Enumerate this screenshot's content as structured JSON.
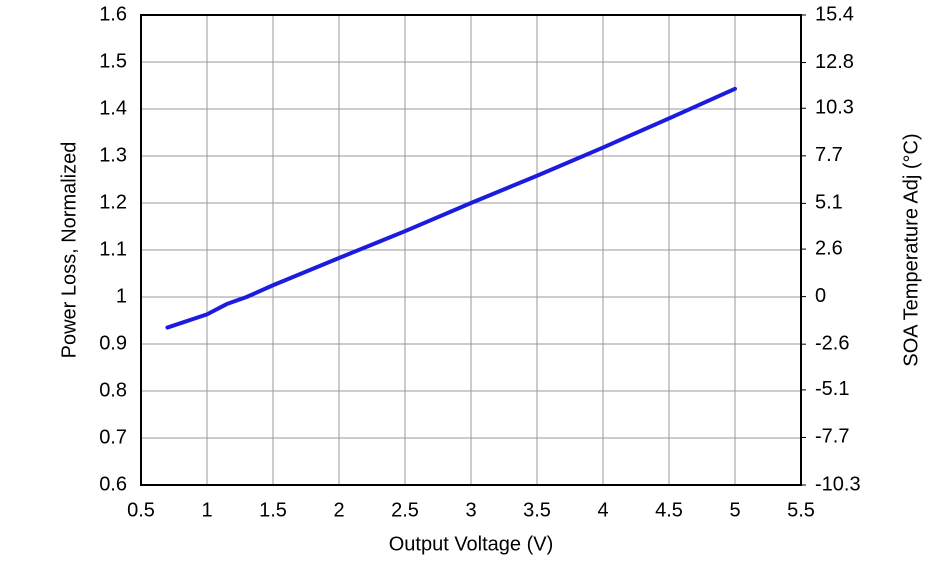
{
  "chart_data": {
    "type": "line",
    "x_label": "Output Voltage (V)",
    "y_label": "Power Loss, Normalized",
    "y2_label": "SOA Temperature Adj (°C)",
    "xlim": [
      0.5,
      5.5
    ],
    "xticks": [
      0.5,
      1,
      1.5,
      2,
      2.5,
      3,
      3.5,
      4,
      4.5,
      5,
      5.5
    ],
    "ylim": [
      0.6,
      1.6
    ],
    "yticks": [
      0.6,
      0.7,
      0.8,
      0.9,
      1,
      1.1,
      1.2,
      1.3,
      1.4,
      1.5,
      1.6
    ],
    "y2lim": [
      -10.3,
      15.4
    ],
    "y2ticks": [
      -10.3,
      -7.7,
      -5.1,
      -2.6,
      0,
      2.6,
      5.1,
      7.7,
      10.3,
      12.8,
      15.4
    ],
    "grid": true,
    "x": [
      0.7,
      1.0,
      1.15,
      1.3,
      1.5,
      2,
      2.5,
      3,
      3.5,
      4,
      4.5,
      5
    ],
    "series": [
      {
        "color": "#1c1ce0",
        "values": [
          0.935,
          0.963,
          0.985,
          1.0,
          1.025,
          1.083,
          1.14,
          1.2,
          1.258,
          1.318,
          1.38,
          1.443
        ]
      }
    ]
  }
}
